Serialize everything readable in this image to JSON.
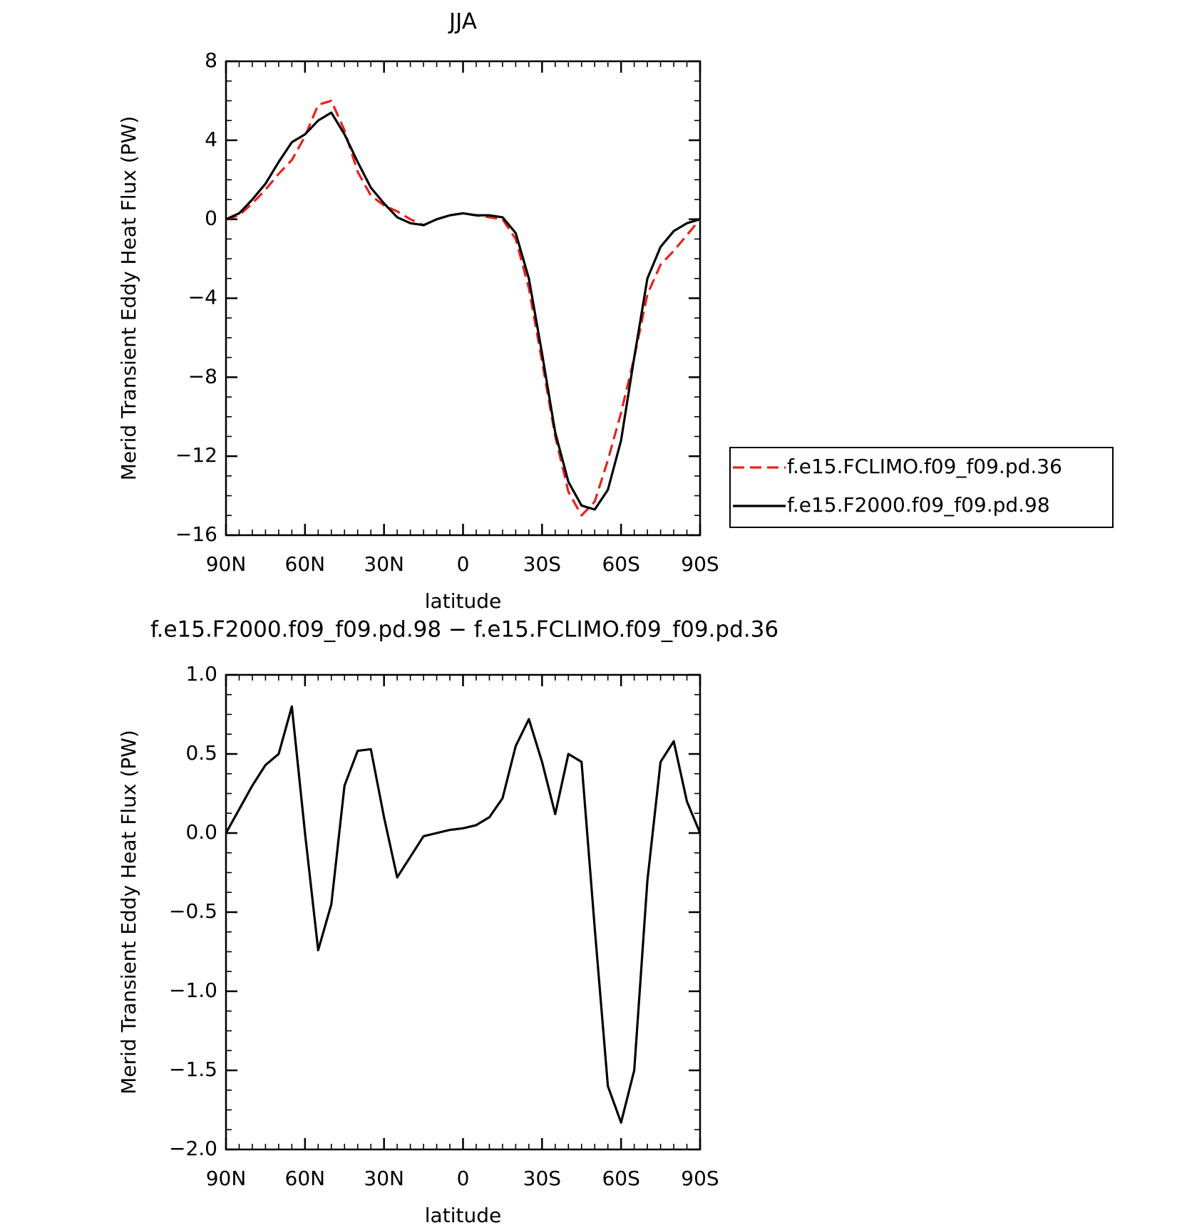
{
  "chart_data": [
    {
      "type": "line",
      "title": "JJA",
      "xlabel": "latitude",
      "ylabel": "Merid Transient Eddy Heat Flux (PW)",
      "x": [
        90,
        85,
        80,
        75,
        70,
        65,
        60,
        55,
        50,
        45,
        40,
        35,
        30,
        25,
        20,
        15,
        10,
        5,
        0,
        -5,
        -10,
        -15,
        -20,
        -25,
        -30,
        -35,
        -40,
        -45,
        -50,
        -55,
        -60,
        -65,
        -70,
        -75,
        -80,
        -85,
        -90
      ],
      "series": [
        {
          "name": "f.e15.FCLIMO.f09_f09.pd.36",
          "color": "#e8221c",
          "linestyle": "dashed",
          "values": [
            0,
            0.2,
            0.8,
            1.5,
            2.3,
            3.0,
            4.2,
            5.8,
            6.0,
            4.5,
            2.4,
            1.2,
            0.7,
            0.4,
            0.0,
            -0.3,
            0.0,
            0.2,
            0.3,
            0.2,
            0.1,
            0.0,
            -1.0,
            -3.5,
            -7.2,
            -11.0,
            -13.8,
            -15.0,
            -14.3,
            -12.2,
            -9.8,
            -7.0,
            -3.8,
            -2.3,
            -1.6,
            -0.8,
            0
          ]
        },
        {
          "name": "f.e15.F2000.f09_f09.pd.98",
          "color": "#000000",
          "linestyle": "solid",
          "values": [
            0,
            0.3,
            1.0,
            1.8,
            2.9,
            3.9,
            4.3,
            5.0,
            5.4,
            4.3,
            2.9,
            1.6,
            0.8,
            0.1,
            -0.2,
            -0.3,
            0.0,
            0.2,
            0.3,
            0.2,
            0.2,
            0.1,
            -0.7,
            -3.0,
            -6.8,
            -10.8,
            -13.3,
            -14.5,
            -14.7,
            -13.7,
            -11.2,
            -7.0,
            -3.0,
            -1.4,
            -0.6,
            -0.2,
            0
          ]
        }
      ],
      "xlim": [
        90,
        -90
      ],
      "xticks": [
        {
          "value": 90,
          "label": "90N"
        },
        {
          "value": 60,
          "label": "60N"
        },
        {
          "value": 30,
          "label": "30N"
        },
        0,
        {
          "value": -30,
          "label": "30S"
        },
        {
          "value": -60,
          "label": "60S"
        },
        {
          "value": -90,
          "label": "90S"
        }
      ],
      "ylim": [
        -16,
        8
      ],
      "yticks": [
        8,
        4,
        0,
        {
          "value": -4,
          "label": "−4"
        },
        {
          "value": -8,
          "label": "−8"
        },
        {
          "value": -12,
          "label": "−12"
        },
        {
          "value": -16,
          "label": "−16"
        }
      ],
      "legend": "right"
    },
    {
      "type": "line",
      "title": "f.e15.F2000.f09_f09.pd.98 − f.e15.FCLIMO.f09_f09.pd.36",
      "xlabel": "latitude",
      "ylabel": "Merid Transient Eddy Heat Flux (PW)",
      "x": [
        90,
        85,
        80,
        75,
        70,
        65,
        60,
        55,
        50,
        45,
        40,
        35,
        30,
        25,
        20,
        15,
        10,
        5,
        0,
        -5,
        -10,
        -15,
        -20,
        -25,
        -30,
        -35,
        -40,
        -45,
        -50,
        -55,
        -60,
        -65,
        -70,
        -75,
        -80,
        -85,
        -90
      ],
      "series": [
        {
          "color": "#000000",
          "linestyle": "solid",
          "values": [
            0,
            0.15,
            0.3,
            0.43,
            0.5,
            0.8,
            0.0,
            -0.74,
            -0.45,
            0.3,
            0.52,
            0.53,
            0.1,
            -0.28,
            -0.15,
            -0.02,
            0.0,
            0.02,
            0.03,
            0.05,
            0.1,
            0.22,
            0.55,
            0.72,
            0.45,
            0.12,
            0.5,
            0.45,
            -0.6,
            -1.6,
            -1.83,
            -1.5,
            -0.3,
            0.45,
            0.58,
            0.2,
            0
          ]
        }
      ],
      "xlim": [
        90,
        -90
      ],
      "xticks": [
        {
          "value": 90,
          "label": "90N"
        },
        {
          "value": 60,
          "label": "60N"
        },
        {
          "value": 30,
          "label": "30N"
        },
        0,
        {
          "value": -30,
          "label": "30S"
        },
        {
          "value": -60,
          "label": "60S"
        },
        {
          "value": -90,
          "label": "90S"
        }
      ],
      "ylim": [
        -2,
        1
      ],
      "yticks": [
        {
          "value": 1,
          "label": "1.0"
        },
        0.5,
        {
          "value": 0,
          "label": "0.0"
        },
        {
          "value": -0.5,
          "label": "−0.5"
        },
        {
          "value": -1,
          "label": "−1.0"
        },
        {
          "value": -1.5,
          "label": "−1.5"
        },
        {
          "value": -2,
          "label": "−2.0"
        }
      ]
    }
  ]
}
